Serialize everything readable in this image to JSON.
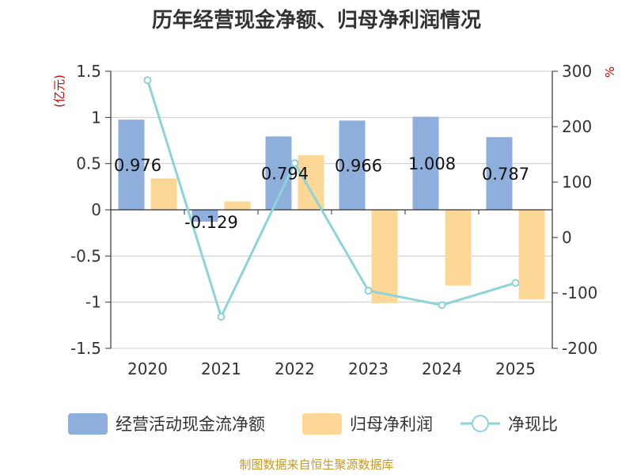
{
  "chart_data": {
    "type": "bar",
    "title": "历年经营现金净额、归母净利润情况",
    "categories": [
      "2020",
      "2021",
      "2022",
      "2023",
      "2024",
      "2025"
    ],
    "series": [
      {
        "name": "经营活动现金流净额",
        "type": "bar",
        "axis": "left",
        "color": "#8eaedb",
        "values": [
          0.976,
          -0.129,
          0.794,
          0.966,
          1.008,
          0.787
        ],
        "labels": [
          "0.976",
          "-0.129",
          "0.794",
          "0.966",
          "1.008",
          "0.787"
        ]
      },
      {
        "name": "归母净利润",
        "type": "bar",
        "axis": "left",
        "color": "#fdd796",
        "values": [
          0.34,
          0.09,
          0.59,
          -1.01,
          -0.82,
          -0.97
        ]
      },
      {
        "name": "净现比",
        "type": "line",
        "axis": "right",
        "color": "#8dd3d8",
        "values": [
          284,
          -143,
          134,
          -96,
          -122,
          -82
        ]
      }
    ],
    "y_left": {
      "unit": "(亿元)",
      "min": -1.5,
      "max": 1.5,
      "ticks": [
        1.5,
        1,
        0.5,
        0,
        -0.5,
        -1,
        -1.5
      ],
      "tick_labels": [
        "1.5",
        "1",
        "0.5",
        "0",
        "-0.5",
        "-1",
        "-1.5"
      ]
    },
    "y_right": {
      "unit": "%",
      "min": -200,
      "max": 300,
      "ticks": [
        300,
        200,
        100,
        0,
        -100,
        -200
      ],
      "tick_labels": [
        "300",
        "200",
        "100",
        "0",
        "-100",
        "-200"
      ]
    },
    "legend_position": "bottom",
    "source": "制图数据来自恒生聚源数据库"
  }
}
